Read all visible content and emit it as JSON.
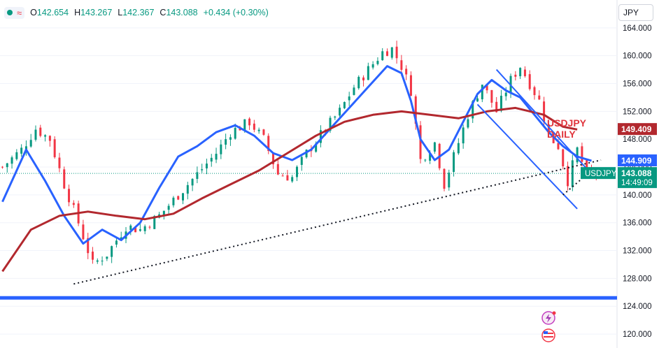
{
  "header": {
    "ohlc": [
      {
        "key": "O",
        "value": "142.654"
      },
      {
        "key": "H",
        "value": "143.267"
      },
      {
        "key": "L",
        "value": "142.367"
      },
      {
        "key": "C",
        "value": "143.088"
      }
    ],
    "change": "+0.434 (+0.30%)",
    "currency": "JPY",
    "icons": [
      "live-dot-icon",
      "wave-icon"
    ]
  },
  "colors": {
    "up": "#089981",
    "down": "#f23645",
    "ma_fast": "#2962ff",
    "ma_slow": "#b2282e",
    "support_line": "#2962ff",
    "trendline": "#131722"
  },
  "chart_data": {
    "type": "candlestick",
    "annotation": "USDJPY\nDAILY",
    "y_axis": {
      "range": [
        118,
        168
      ],
      "ticks": [
        "120.000",
        "124.000",
        "128.000",
        "132.000",
        "136.000",
        "140.000",
        "144.000",
        "148.000",
        "152.000",
        "156.000",
        "160.000",
        "164.000"
      ]
    },
    "price_tags": [
      {
        "label": "149.409",
        "value": 149.409,
        "color": "#b2282e"
      },
      {
        "label": "144.909",
        "value": 144.909,
        "color": "#2962ff"
      },
      {
        "label": "143.088",
        "sub": "14:49:09",
        "value": 143.088,
        "color": "#089981",
        "symbol": "USDJPY"
      }
    ],
    "close_path": [
      [
        0,
        144.0
      ],
      [
        4,
        146.5
      ],
      [
        7,
        149.5
      ],
      [
        10,
        148.0
      ],
      [
        13,
        141.5
      ],
      [
        16,
        136.0
      ],
      [
        19,
        130.0
      ],
      [
        22,
        131.5
      ],
      [
        26,
        135.5
      ],
      [
        29,
        135.0
      ],
      [
        33,
        137.0
      ],
      [
        37,
        140.0
      ],
      [
        41,
        143.0
      ],
      [
        45,
        146.0
      ],
      [
        48,
        149.0
      ],
      [
        52,
        150.5
      ],
      [
        55,
        148.0
      ],
      [
        58,
        143.0
      ],
      [
        61,
        142.5
      ],
      [
        64,
        146.0
      ],
      [
        68,
        149.5
      ],
      [
        71,
        152.0
      ],
      [
        74,
        155.5
      ],
      [
        77,
        158.0
      ],
      [
        80,
        160.5
      ],
      [
        82,
        161.0
      ],
      [
        84,
        158.5
      ],
      [
        86,
        155.0
      ],
      [
        88,
        145.0
      ],
      [
        91,
        147.5
      ],
      [
        93,
        141.5
      ],
      [
        95,
        145.5
      ],
      [
        98,
        151.5
      ],
      [
        101,
        156.0
      ],
      [
        104,
        152.0
      ],
      [
        107,
        156.5
      ],
      [
        109,
        158.5
      ],
      [
        111,
        156.0
      ],
      [
        113,
        153.5
      ],
      [
        115,
        148.5
      ],
      [
        117,
        147.0
      ],
      [
        119,
        142.0
      ],
      [
        121,
        146.5
      ],
      [
        123,
        143.0
      ],
      [
        125,
        143.1
      ]
    ],
    "series": [
      {
        "name": "",
        "values": [
          [
            0,
            139.0
          ],
          [
            5,
            146.5
          ],
          [
            9,
            142.0
          ],
          [
            13,
            137.0
          ],
          [
            17,
            133.0
          ],
          [
            21,
            135.0
          ],
          [
            25,
            133.5
          ],
          [
            29,
            136.0
          ],
          [
            33,
            141.0
          ],
          [
            37,
            145.5
          ],
          [
            41,
            147.0
          ],
          [
            45,
            149.0
          ],
          [
            49,
            150.0
          ],
          [
            53,
            148.5
          ],
          [
            57,
            146.0
          ],
          [
            61,
            145.0
          ],
          [
            65,
            146.5
          ],
          [
            69,
            149.5
          ],
          [
            73,
            152.5
          ],
          [
            77,
            155.5
          ],
          [
            81,
            158.5
          ],
          [
            84,
            157.5
          ],
          [
            86,
            153.5
          ],
          [
            88,
            148.0
          ],
          [
            91,
            145.0
          ],
          [
            94,
            146.5
          ],
          [
            97,
            150.5
          ],
          [
            100,
            154.5
          ],
          [
            103,
            156.5
          ],
          [
            106,
            155.0
          ],
          [
            109,
            154.0
          ],
          [
            112,
            151.5
          ],
          [
            115,
            149.0
          ],
          [
            118,
            147.0
          ],
          [
            121,
            145.5
          ],
          [
            124,
            144.9
          ]
        ]
      },
      {
        "name": "",
        "values": [
          [
            0,
            129.0
          ],
          [
            6,
            135.0
          ],
          [
            12,
            137.0
          ],
          [
            18,
            137.6
          ],
          [
            24,
            137.0
          ],
          [
            30,
            136.5
          ],
          [
            36,
            137.3
          ],
          [
            42,
            139.5
          ],
          [
            48,
            141.5
          ],
          [
            54,
            143.5
          ],
          [
            60,
            146.0
          ],
          [
            66,
            148.5
          ],
          [
            72,
            150.5
          ],
          [
            78,
            151.5
          ],
          [
            84,
            152.0
          ],
          [
            90,
            151.5
          ],
          [
            96,
            151.0
          ],
          [
            102,
            152.0
          ],
          [
            108,
            152.5
          ],
          [
            114,
            151.5
          ],
          [
            118,
            149.8
          ],
          [
            121,
            149.4
          ]
        ]
      }
    ],
    "lines": [
      {
        "from": [
          15,
          127.2
        ],
        "to": [
          126,
          145.0
        ],
        "style": "dotted",
        "color": "#131722"
      },
      {
        "from": [
          104,
          158.0
        ],
        "to": [
          124,
          143.0
        ],
        "style": "solid",
        "color": "#2962ff"
      },
      {
        "from": [
          100,
          153.0
        ],
        "to": [
          121,
          138.0
        ],
        "style": "solid",
        "color": "#2962ff"
      },
      {
        "from": [
          118,
          140.0
        ],
        "to": [
          124,
          143.5
        ],
        "style": "dotted",
        "color": "#131722"
      }
    ],
    "hlines": [
      {
        "value": 125.2,
        "color": "#2962ff"
      },
      {
        "value": 143.088,
        "color": "#089981",
        "style": "dotted"
      }
    ]
  }
}
